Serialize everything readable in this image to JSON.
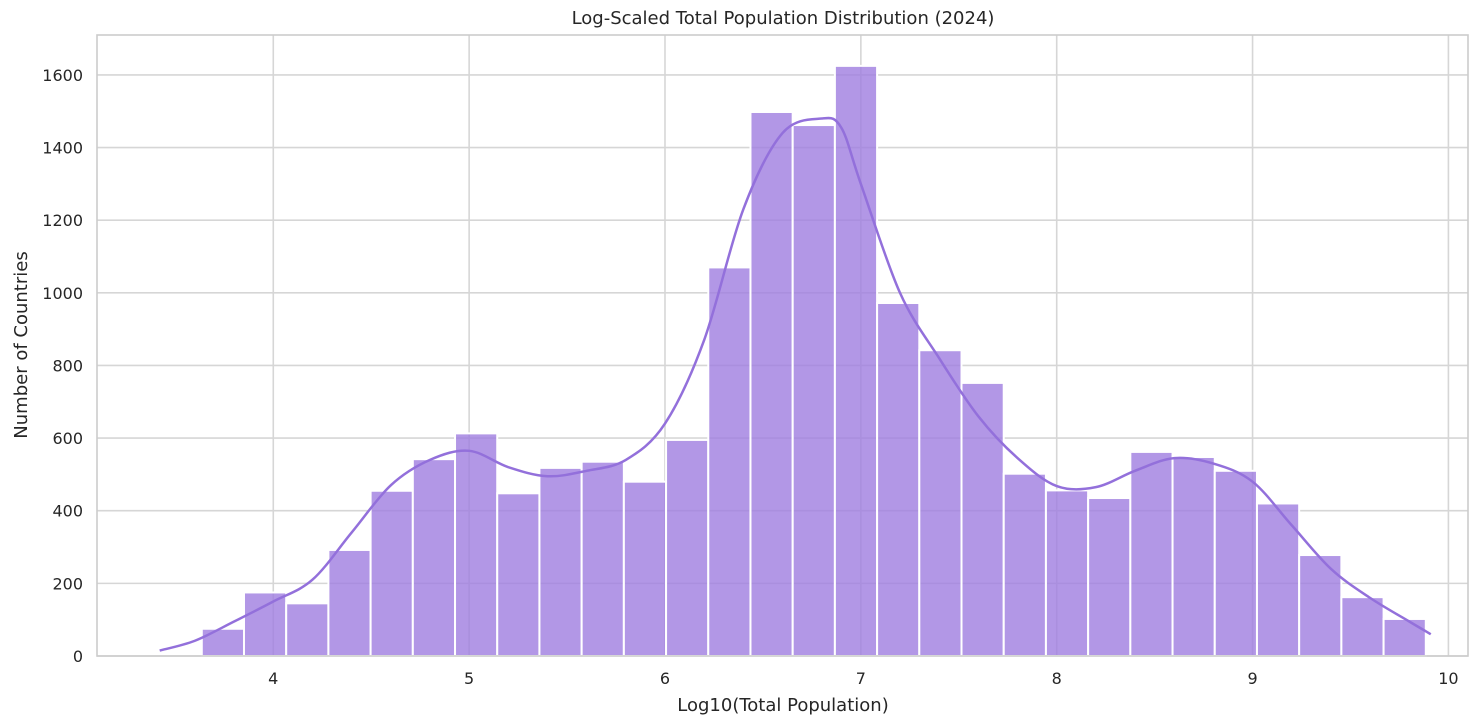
{
  "chart_data": {
    "type": "bar",
    "subtype": "histogram",
    "title": "Log-Scaled Total Population Distribution (2024)",
    "xlabel": "Log10(Total Population)",
    "ylabel": "Number of Countries",
    "xlim": [
      3.1,
      10.1
    ],
    "ylim": [
      0,
      1710
    ],
    "x_ticks": [
      4,
      5,
      6,
      7,
      8,
      9,
      10
    ],
    "y_ticks": [
      0,
      200,
      400,
      600,
      800,
      1000,
      1200,
      1400,
      1600
    ],
    "grid": true,
    "bar_color": "#9f7de0",
    "kde_color": "#9370db",
    "bin_start": 3.635,
    "bin_width": 0.2155,
    "counts": [
      75,
      175,
      145,
      292,
      455,
      542,
      613,
      448,
      518,
      535,
      480,
      595,
      1070,
      1498,
      1462,
      1625,
      972,
      842,
      752,
      502,
      456,
      435,
      562,
      548,
      510,
      420,
      278,
      162,
      102
    ],
    "kde_x": [
      3.42,
      3.6,
      3.8,
      4.0,
      4.2,
      4.4,
      4.6,
      4.8,
      5.0,
      5.2,
      5.4,
      5.6,
      5.8,
      6.0,
      6.2,
      6.4,
      6.6,
      6.8,
      6.9,
      7.0,
      7.2,
      7.4,
      7.6,
      7.8,
      8.0,
      8.2,
      8.4,
      8.6,
      8.8,
      9.0,
      9.2,
      9.4,
      9.6,
      9.8,
      9.91
    ],
    "kde_y": [
      15,
      42,
      95,
      150,
      210,
      340,
      470,
      540,
      565,
      520,
      495,
      510,
      540,
      640,
      870,
      1230,
      1440,
      1480,
      1455,
      1300,
      1000,
      820,
      660,
      545,
      468,
      465,
      510,
      545,
      530,
      480,
      360,
      240,
      160,
      95,
      60
    ]
  }
}
